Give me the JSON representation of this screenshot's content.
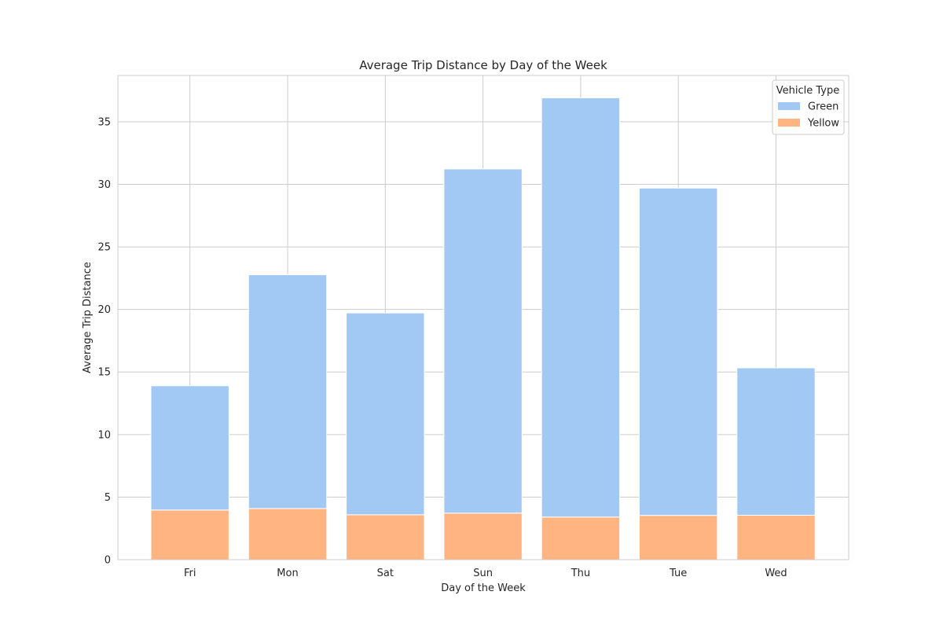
{
  "chart_data": {
    "type": "bar",
    "stacked": true,
    "title": "Average Trip Distance by Day of the Week",
    "xlabel": "Day of the Week",
    "ylabel": "Average Trip Distance",
    "categories": [
      "Fri",
      "Mon",
      "Sat",
      "Sun",
      "Thu",
      "Tue",
      "Wed"
    ],
    "series": [
      {
        "name": "Yellow",
        "color": "#ffb482",
        "values": [
          3.97,
          4.09,
          3.59,
          3.72,
          3.41,
          3.54,
          3.55
        ]
      },
      {
        "name": "Green",
        "color": "#a1c9f4",
        "values": [
          9.93,
          18.68,
          16.13,
          27.51,
          33.5,
          26.16,
          11.78
        ]
      }
    ],
    "ylim": [
      0,
      38.7
    ],
    "yticks": [
      0,
      5,
      10,
      15,
      20,
      25,
      30,
      35
    ],
    "grid": true,
    "legend": {
      "title": "Vehicle Type",
      "position": "top-right",
      "order": [
        "Green",
        "Yellow"
      ]
    }
  }
}
